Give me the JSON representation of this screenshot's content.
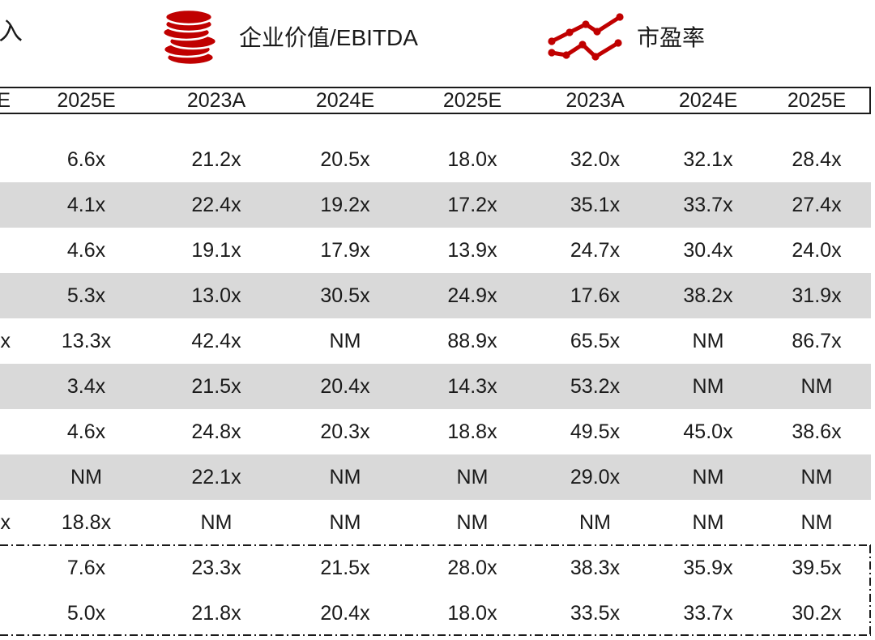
{
  "legend": {
    "cropped_left_label": "入",
    "items": [
      {
        "icon": "coins-icon",
        "label": "企业价值/EBITDA"
      },
      {
        "icon": "trend-lines-icon",
        "label": "市盈率"
      }
    ]
  },
  "table": {
    "header": [
      "E",
      "2025E",
      "2023A",
      "2024E",
      "2025E",
      "2023A",
      "2024E",
      "2025E"
    ],
    "rows": [
      {
        "shaded": false,
        "cells": [
          "",
          "6.6x",
          "21.2x",
          "20.5x",
          "18.0x",
          "32.0x",
          "32.1x",
          "28.4x"
        ]
      },
      {
        "shaded": true,
        "cells": [
          "",
          "4.1x",
          "22.4x",
          "19.2x",
          "17.2x",
          "35.1x",
          "33.7x",
          "27.4x"
        ]
      },
      {
        "shaded": false,
        "cells": [
          "",
          "4.6x",
          "19.1x",
          "17.9x",
          "13.9x",
          "24.7x",
          "30.4x",
          "24.0x"
        ]
      },
      {
        "shaded": true,
        "cells": [
          "",
          "5.3x",
          "13.0x",
          "30.5x",
          "24.9x",
          "17.6x",
          "38.2x",
          "31.9x"
        ]
      },
      {
        "shaded": false,
        "cells": [
          "x",
          "13.3x",
          "42.4x",
          "NM",
          "88.9x",
          "65.5x",
          "NM",
          "86.7x"
        ]
      },
      {
        "shaded": true,
        "cells": [
          "",
          "3.4x",
          "21.5x",
          "20.4x",
          "14.3x",
          "53.2x",
          "NM",
          "NM"
        ]
      },
      {
        "shaded": false,
        "cells": [
          "",
          "4.6x",
          "24.8x",
          "20.3x",
          "18.8x",
          "49.5x",
          "45.0x",
          "38.6x"
        ]
      },
      {
        "shaded": true,
        "cells": [
          "",
          "NM",
          "22.1x",
          "NM",
          "NM",
          "29.0x",
          "NM",
          "NM"
        ]
      },
      {
        "shaded": false,
        "cells": [
          "x",
          "18.8x",
          "NM",
          "NM",
          "NM",
          "NM",
          "NM",
          "NM"
        ]
      }
    ],
    "summary_rows": [
      {
        "cells": [
          "",
          "7.6x",
          "23.3x",
          "21.5x",
          "28.0x",
          "38.3x",
          "35.9x",
          "39.5x"
        ]
      },
      {
        "cells": [
          "",
          "5.0x",
          "21.8x",
          "20.4x",
          "18.0x",
          "33.5x",
          "33.7x",
          "30.2x"
        ]
      }
    ]
  },
  "colors": {
    "accent_red": "#c00000",
    "row_shade": "#d9d9d9",
    "line": "#1a1a1a"
  }
}
